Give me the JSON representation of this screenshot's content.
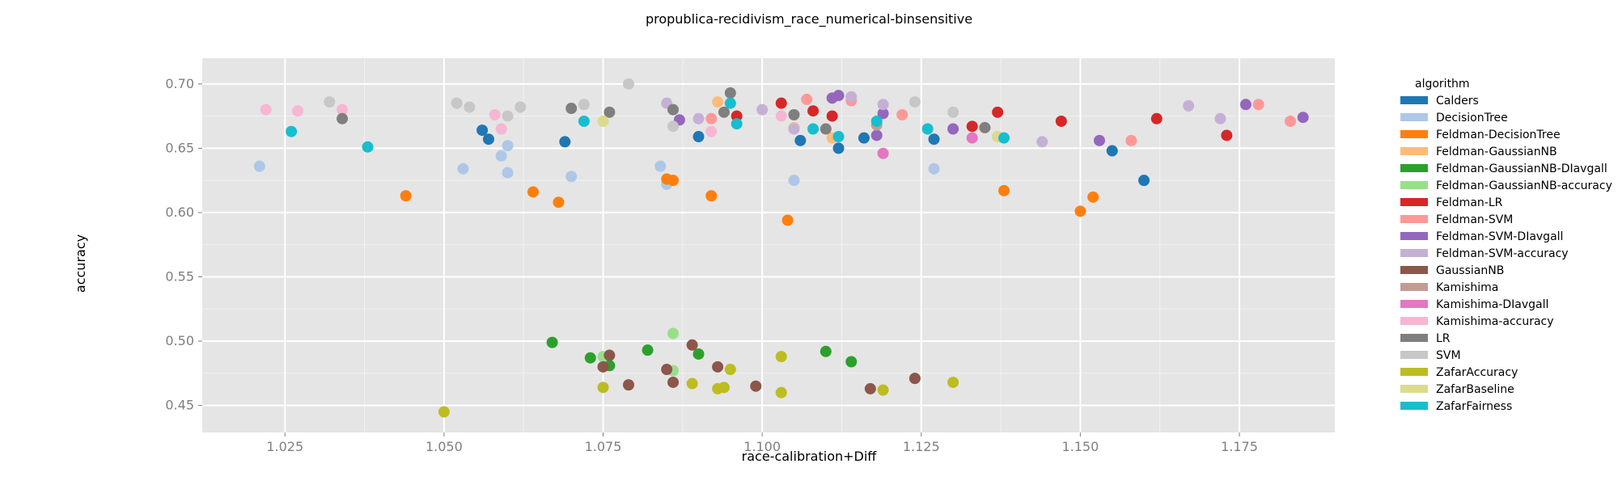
{
  "chart_data": {
    "type": "scatter",
    "title": "propublica-recidivism_race_numerical-binsensitive",
    "xlabel": "race-calibration+Diff",
    "ylabel": "accuracy",
    "xlim": [
      1.012,
      1.19
    ],
    "ylim": [
      0.429,
      0.72
    ],
    "x_ticks": [
      "1.025",
      "1.050",
      "1.075",
      "1.100",
      "1.125",
      "1.150",
      "1.175"
    ],
    "y_ticks": [
      "0.45",
      "0.50",
      "0.55",
      "0.60",
      "0.65",
      "0.70"
    ],
    "x_tick_values": [
      1.025,
      1.05,
      1.075,
      1.1,
      1.125,
      1.15,
      1.175
    ],
    "y_tick_values": [
      0.45,
      0.5,
      0.55,
      0.6,
      0.65,
      0.7
    ],
    "grid": true,
    "legend_title": "algorithm",
    "legend_position": "right",
    "series": [
      {
        "name": "Calders",
        "color": "#1f77b4",
        "points": [
          [
            1.056,
            0.664
          ],
          [
            1.057,
            0.657
          ],
          [
            1.069,
            0.655
          ],
          [
            1.09,
            0.659
          ],
          [
            1.106,
            0.656
          ],
          [
            1.112,
            0.65
          ],
          [
            1.116,
            0.658
          ],
          [
            1.127,
            0.657
          ],
          [
            1.155,
            0.648
          ],
          [
            1.16,
            0.625
          ]
        ]
      },
      {
        "name": "DecisionTree",
        "color": "#aec7e8",
        "points": [
          [
            1.021,
            0.636
          ],
          [
            1.053,
            0.634
          ],
          [
            1.059,
            0.644
          ],
          [
            1.06,
            0.631
          ],
          [
            1.06,
            0.652
          ],
          [
            1.07,
            0.628
          ],
          [
            1.084,
            0.636
          ],
          [
            1.085,
            0.622
          ],
          [
            1.105,
            0.625
          ],
          [
            1.127,
            0.634
          ]
        ]
      },
      {
        "name": "Feldman-DecisionTree",
        "color": "#ff7f0e",
        "points": [
          [
            1.044,
            0.613
          ],
          [
            1.064,
            0.616
          ],
          [
            1.068,
            0.608
          ],
          [
            1.085,
            0.626
          ],
          [
            1.086,
            0.625
          ],
          [
            1.092,
            0.613
          ],
          [
            1.104,
            0.594
          ],
          [
            1.138,
            0.617
          ],
          [
            1.15,
            0.601
          ],
          [
            1.152,
            0.612
          ]
        ]
      },
      {
        "name": "Feldman-GaussianNB",
        "color": "#ffbb78",
        "points": [
          [
            1.093,
            0.686
          ],
          [
            1.105,
            0.666
          ],
          [
            1.111,
            0.658
          ],
          [
            1.137,
            0.659
          ]
        ]
      },
      {
        "name": "Feldman-GaussianNB-DIavgall",
        "color": "#2ca02c",
        "points": [
          [
            1.067,
            0.499
          ],
          [
            1.073,
            0.487
          ],
          [
            1.076,
            0.481
          ],
          [
            1.082,
            0.493
          ],
          [
            1.09,
            0.49
          ],
          [
            1.11,
            0.492
          ],
          [
            1.114,
            0.484
          ]
        ]
      },
      {
        "name": "Feldman-GaussianNB-accuracy",
        "color": "#98df8a",
        "points": [
          [
            1.075,
            0.488
          ],
          [
            1.086,
            0.506
          ],
          [
            1.086,
            0.477
          ],
          [
            1.124,
            0.471
          ]
        ]
      },
      {
        "name": "Feldman-LR",
        "color": "#d62728",
        "points": [
          [
            1.096,
            0.675
          ],
          [
            1.103,
            0.685
          ],
          [
            1.108,
            0.679
          ],
          [
            1.111,
            0.675
          ],
          [
            1.133,
            0.667
          ],
          [
            1.137,
            0.678
          ],
          [
            1.147,
            0.671
          ],
          [
            1.162,
            0.673
          ],
          [
            1.173,
            0.66
          ]
        ]
      },
      {
        "name": "Feldman-SVM",
        "color": "#ff9896",
        "points": [
          [
            1.092,
            0.673
          ],
          [
            1.107,
            0.688
          ],
          [
            1.114,
            0.687
          ],
          [
            1.122,
            0.676
          ],
          [
            1.158,
            0.656
          ],
          [
            1.178,
            0.684
          ],
          [
            1.183,
            0.671
          ]
        ]
      },
      {
        "name": "Feldman-SVM-DIavgall",
        "color": "#9467bd",
        "points": [
          [
            1.087,
            0.672
          ],
          [
            1.111,
            0.689
          ],
          [
            1.112,
            0.691
          ],
          [
            1.118,
            0.66
          ],
          [
            1.119,
            0.677
          ],
          [
            1.13,
            0.665
          ],
          [
            1.153,
            0.656
          ],
          [
            1.176,
            0.684
          ],
          [
            1.185,
            0.674
          ]
        ]
      },
      {
        "name": "Feldman-SVM-accuracy",
        "color": "#c5b0d5",
        "points": [
          [
            1.085,
            0.685
          ],
          [
            1.09,
            0.673
          ],
          [
            1.1,
            0.68
          ],
          [
            1.105,
            0.665
          ],
          [
            1.114,
            0.69
          ],
          [
            1.119,
            0.684
          ],
          [
            1.144,
            0.655
          ],
          [
            1.167,
            0.683
          ],
          [
            1.172,
            0.673
          ]
        ]
      },
      {
        "name": "GaussianNB",
        "color": "#8c564b",
        "points": [
          [
            1.075,
            0.48
          ],
          [
            1.076,
            0.489
          ],
          [
            1.079,
            0.466
          ],
          [
            1.085,
            0.478
          ],
          [
            1.086,
            0.468
          ],
          [
            1.089,
            0.497
          ],
          [
            1.093,
            0.48
          ],
          [
            1.099,
            0.465
          ],
          [
            1.117,
            0.463
          ],
          [
            1.124,
            0.471
          ]
        ]
      },
      {
        "name": "Kamishima",
        "color": "#c49c94",
        "points": [
          [
            1.118,
            0.668
          ]
        ]
      },
      {
        "name": "Kamishima-DIavgall",
        "color": "#e377c2",
        "points": [
          [
            1.119,
            0.646
          ],
          [
            1.133,
            0.658
          ]
        ]
      },
      {
        "name": "Kamishima-accuracy",
        "color": "#f7b6d2",
        "points": [
          [
            1.022,
            0.68
          ],
          [
            1.027,
            0.679
          ],
          [
            1.034,
            0.68
          ],
          [
            1.058,
            0.676
          ],
          [
            1.059,
            0.665
          ],
          [
            1.092,
            0.663
          ],
          [
            1.103,
            0.675
          ]
        ]
      },
      {
        "name": "LR",
        "color": "#7f7f7f",
        "points": [
          [
            1.034,
            0.673
          ],
          [
            1.07,
            0.681
          ],
          [
            1.076,
            0.678
          ],
          [
            1.086,
            0.68
          ],
          [
            1.094,
            0.678
          ],
          [
            1.095,
            0.693
          ],
          [
            1.105,
            0.676
          ],
          [
            1.11,
            0.665
          ],
          [
            1.135,
            0.666
          ]
        ]
      },
      {
        "name": "SVM",
        "color": "#c7c7c7",
        "points": [
          [
            1.032,
            0.686
          ],
          [
            1.052,
            0.685
          ],
          [
            1.054,
            0.682
          ],
          [
            1.06,
            0.675
          ],
          [
            1.062,
            0.682
          ],
          [
            1.072,
            0.684
          ],
          [
            1.079,
            0.7
          ],
          [
            1.086,
            0.667
          ],
          [
            1.124,
            0.686
          ],
          [
            1.13,
            0.678
          ]
        ]
      },
      {
        "name": "ZafarAccuracy",
        "color": "#bcbd22",
        "points": [
          [
            1.05,
            0.445
          ],
          [
            1.075,
            0.464
          ],
          [
            1.089,
            0.467
          ],
          [
            1.093,
            0.463
          ],
          [
            1.094,
            0.464
          ],
          [
            1.095,
            0.478
          ],
          [
            1.103,
            0.488
          ],
          [
            1.103,
            0.46
          ],
          [
            1.119,
            0.462
          ],
          [
            1.13,
            0.468
          ]
        ]
      },
      {
        "name": "ZafarBaseline",
        "color": "#dbdb8d",
        "points": [
          [
            1.075,
            0.671
          ],
          [
            1.137,
            0.659
          ]
        ]
      },
      {
        "name": "ZafarFairness",
        "color": "#17becf",
        "points": [
          [
            1.026,
            0.663
          ],
          [
            1.038,
            0.651
          ],
          [
            1.072,
            0.671
          ],
          [
            1.095,
            0.685
          ],
          [
            1.096,
            0.669
          ],
          [
            1.108,
            0.665
          ],
          [
            1.112,
            0.659
          ],
          [
            1.118,
            0.671
          ],
          [
            1.126,
            0.665
          ],
          [
            1.138,
            0.658
          ]
        ]
      }
    ]
  }
}
